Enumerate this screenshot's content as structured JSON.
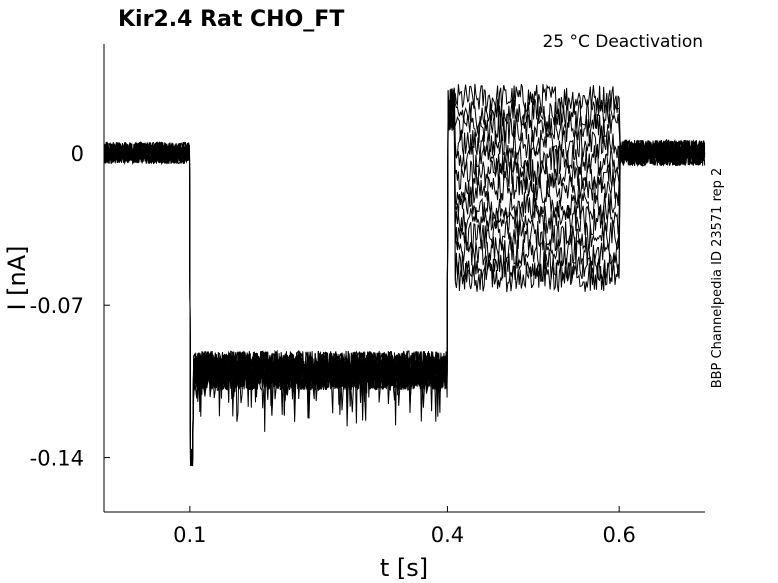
{
  "chart_data": {
    "type": "line",
    "title": "Kir2.4  Rat  CHO_FT",
    "annotation": "25 °C  Deactivation",
    "side_label": "BBP Channelpedia ID 23571 rep 2",
    "xlabel": "t [s]",
    "ylabel": "I [nA]",
    "xlim": [
      0,
      0.7
    ],
    "ylim": [
      -0.165,
      0.05
    ],
    "x_ticks": [
      0.1,
      0.4,
      0.6
    ],
    "x_tick_labels": [
      "0.1",
      "0.4",
      "0.6"
    ],
    "y_ticks": [
      0,
      -0.07,
      -0.14
    ],
    "y_tick_labels": [
      "0",
      "-0.07",
      "-0.14"
    ],
    "grid": false,
    "line_color": "#000000",
    "series_count": 13,
    "protocol": {
      "baseline_current": 0,
      "prepulse_start": 0.1,
      "prepulse_end": 0.4,
      "prepulse_current": -0.1,
      "test_end": 0.6,
      "test_currents": [
        0.025,
        0.018,
        0.011,
        0.004,
        -0.003,
        -0.01,
        -0.017,
        -0.024,
        -0.031,
        -0.038,
        -0.045,
        -0.052,
        -0.057
      ]
    }
  }
}
